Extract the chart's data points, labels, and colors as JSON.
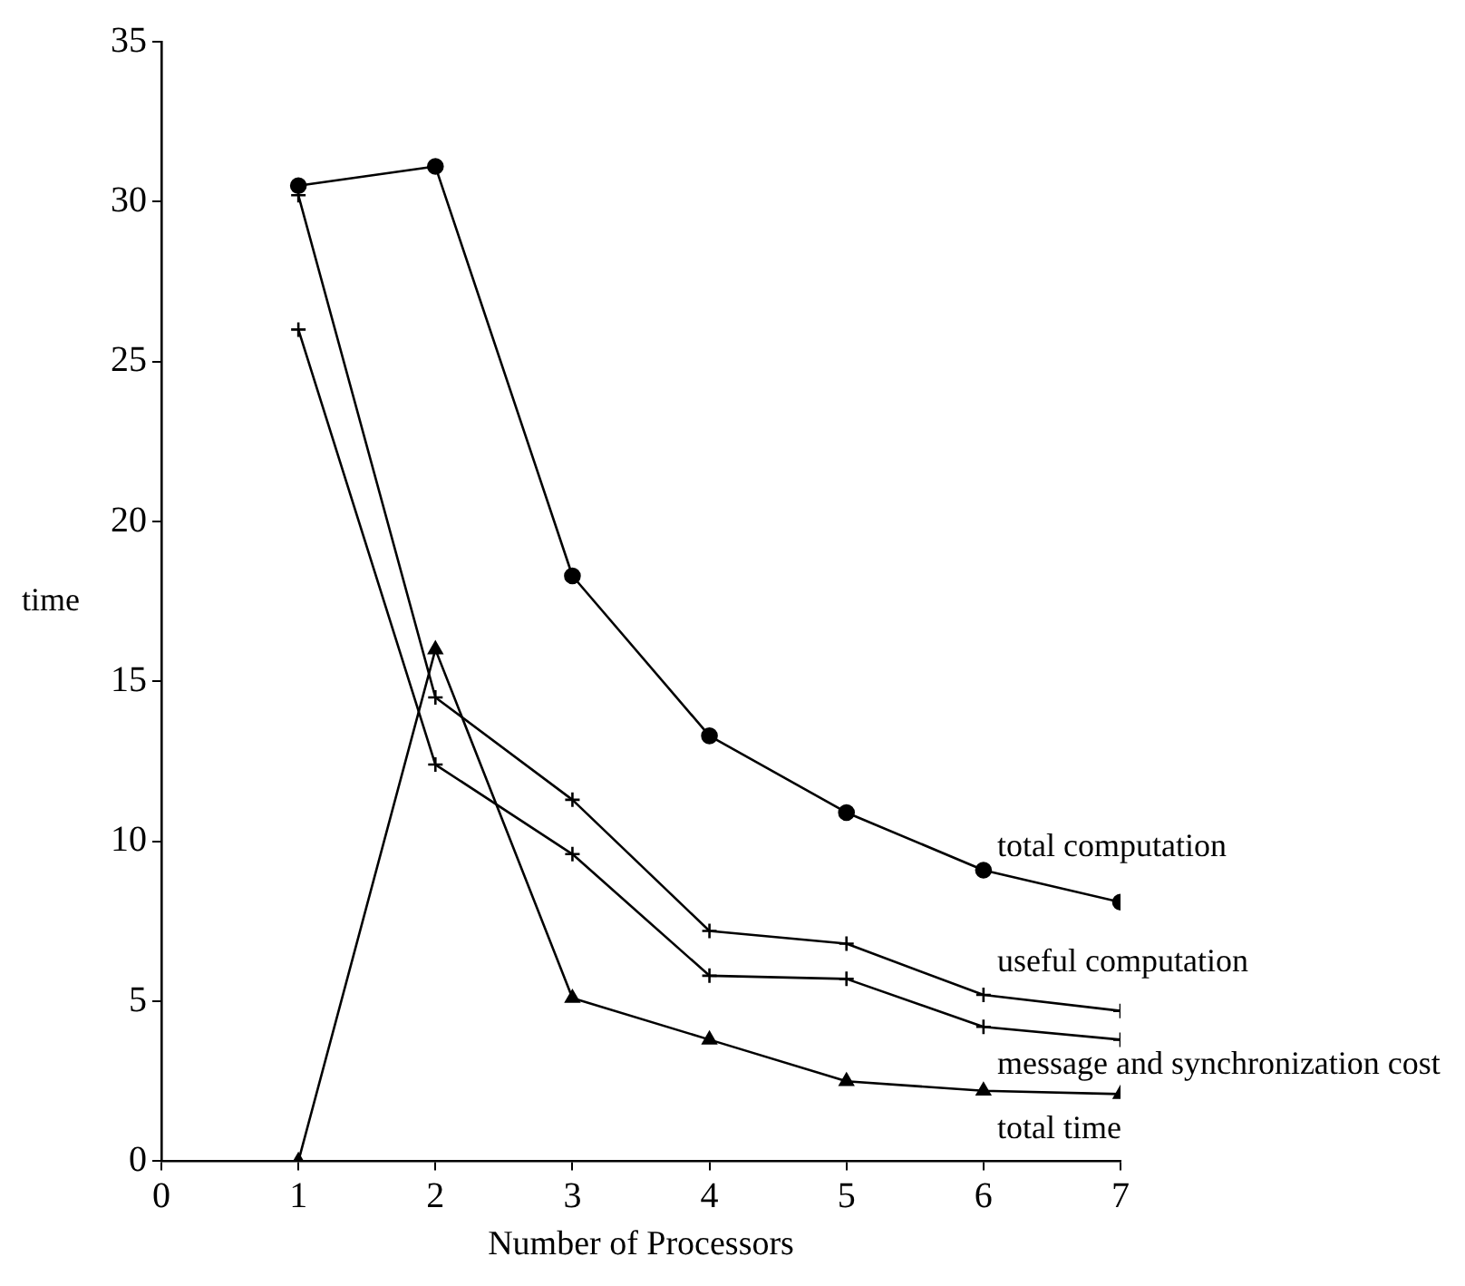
{
  "chart_data": {
    "type": "line",
    "xlabel": "Number of Processors",
    "ylabel": "time",
    "x": [
      1,
      2,
      3,
      4,
      5,
      6,
      7
    ],
    "series": [
      {
        "name": "total computation",
        "color": "#000000",
        "marker": "circle",
        "values": [
          30.5,
          31.1,
          18.3,
          13.3,
          10.9,
          9.1,
          8.1
        ]
      },
      {
        "name": "useful computation",
        "color": "#000000",
        "marker": "cross",
        "values": [
          30.2,
          14.5,
          11.3,
          7.2,
          6.8,
          5.2,
          4.7
        ]
      },
      {
        "name": "message and synchronization cost",
        "color": "#000000",
        "marker": "cross",
        "values": [
          26,
          12.4,
          9.6,
          5.8,
          5.7,
          4.2,
          3.8
        ]
      },
      {
        "name": "total time",
        "color": "#000000",
        "marker": "triangle",
        "values": [
          0,
          16,
          5.1,
          3.8,
          2.5,
          2.2,
          2.1
        ]
      }
    ],
    "xlim": [
      0,
      7
    ],
    "xticks": [
      0,
      1,
      2,
      3,
      4,
      5,
      6,
      7
    ],
    "ylim": [
      0,
      35
    ],
    "yticks": [
      0,
      5,
      10,
      15,
      20,
      25,
      30,
      35
    ],
    "grid": false,
    "legend": false,
    "line_style": "solid"
  }
}
